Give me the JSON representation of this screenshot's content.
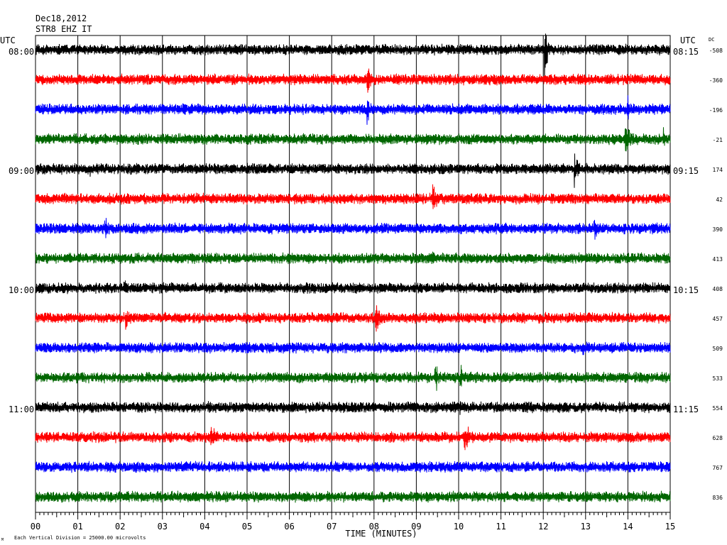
{
  "header": {
    "date": "Dec18,2012",
    "station": "STR8 EHZ IT",
    "utc_left": "UTC",
    "utc_right": "UTC",
    "dc_label": "DC"
  },
  "footer": {
    "scale_note": "Each Vertical Division = 25000.00 microvolts",
    "corner_mark": "M"
  },
  "chart_data": {
    "type": "line",
    "title": "",
    "xlabel": "TIME (MINUTES)",
    "ylabel": "",
    "xlim": [
      0,
      15
    ],
    "x_ticks": [
      "00",
      "01",
      "02",
      "03",
      "04",
      "05",
      "06",
      "07",
      "08",
      "09",
      "10",
      "11",
      "12",
      "13",
      "14",
      "15"
    ],
    "grid": true,
    "trace_colors": [
      "#000000",
      "#ff0000",
      "#0000ff",
      "#006600"
    ],
    "left_time_labels": [
      {
        "row": 0,
        "text": "08:00"
      },
      {
        "row": 4,
        "text": "09:00"
      },
      {
        "row": 8,
        "text": "10:00"
      },
      {
        "row": 12,
        "text": "11:00"
      }
    ],
    "right_time_labels": [
      {
        "row": 0,
        "text": "08:15"
      },
      {
        "row": 4,
        "text": "09:15"
      },
      {
        "row": 8,
        "text": "10:15"
      },
      {
        "row": 12,
        "text": "11:15"
      }
    ],
    "dc_values": [
      "-508",
      "-360",
      "-196",
      "-21",
      "174",
      "42",
      "390",
      "413",
      "408",
      "457",
      "509",
      "533",
      "554",
      "628",
      "767",
      "836"
    ],
    "events": [
      {
        "row": 0,
        "minute": 12.05,
        "amplitude": 3.2,
        "duration": 0.25
      },
      {
        "row": 1,
        "minute": 7.85,
        "amplitude": 2.2,
        "duration": 0.3
      },
      {
        "row": 2,
        "minute": 7.85,
        "amplitude": 1.6,
        "duration": 0.35
      },
      {
        "row": 2,
        "minute": 14.0,
        "amplitude": 1.5,
        "duration": 0.3
      },
      {
        "row": 3,
        "minute": 3.2,
        "amplitude": 0.7,
        "duration": 0.3
      },
      {
        "row": 3,
        "minute": 13.95,
        "amplitude": 2.2,
        "duration": 0.45
      },
      {
        "row": 3,
        "minute": 14.85,
        "amplitude": 1.2,
        "duration": 0.25
      },
      {
        "row": 4,
        "minute": 1.3,
        "amplitude": 1.0,
        "duration": 0.35
      },
      {
        "row": 4,
        "minute": 12.75,
        "amplitude": 2.2,
        "duration": 0.3
      },
      {
        "row": 4,
        "minute": 9.4,
        "amplitude": 0.7,
        "duration": 0.2
      },
      {
        "row": 5,
        "minute": 9.4,
        "amplitude": 2.0,
        "duration": 0.35
      },
      {
        "row": 6,
        "minute": 1.65,
        "amplitude": 1.5,
        "duration": 0.3
      },
      {
        "row": 6,
        "minute": 13.2,
        "amplitude": 1.2,
        "duration": 0.4
      },
      {
        "row": 7,
        "minute": 9.4,
        "amplitude": 0.8,
        "duration": 0.2
      },
      {
        "row": 8,
        "minute": 2.1,
        "amplitude": 1.3,
        "duration": 0.2
      },
      {
        "row": 9,
        "minute": 2.15,
        "amplitude": 1.4,
        "duration": 0.3
      },
      {
        "row": 9,
        "minute": 8.05,
        "amplitude": 1.5,
        "duration": 0.4
      },
      {
        "row": 10,
        "minute": 12.95,
        "amplitude": 0.8,
        "duration": 0.3
      },
      {
        "row": 11,
        "minute": 9.45,
        "amplitude": 1.6,
        "duration": 0.4
      },
      {
        "row": 11,
        "minute": 10.05,
        "amplitude": 1.5,
        "duration": 0.2
      },
      {
        "row": 12,
        "minute": 4.1,
        "amplitude": 0.9,
        "duration": 0.3
      },
      {
        "row": 12,
        "minute": 10.05,
        "amplitude": 0.9,
        "duration": 0.3
      },
      {
        "row": 13,
        "minute": 4.15,
        "amplitude": 1.6,
        "duration": 0.4
      },
      {
        "row": 13,
        "minute": 10.15,
        "amplitude": 1.8,
        "duration": 0.5
      },
      {
        "row": 13,
        "minute": 5.0,
        "amplitude": 0.6,
        "duration": 0.2
      }
    ]
  }
}
